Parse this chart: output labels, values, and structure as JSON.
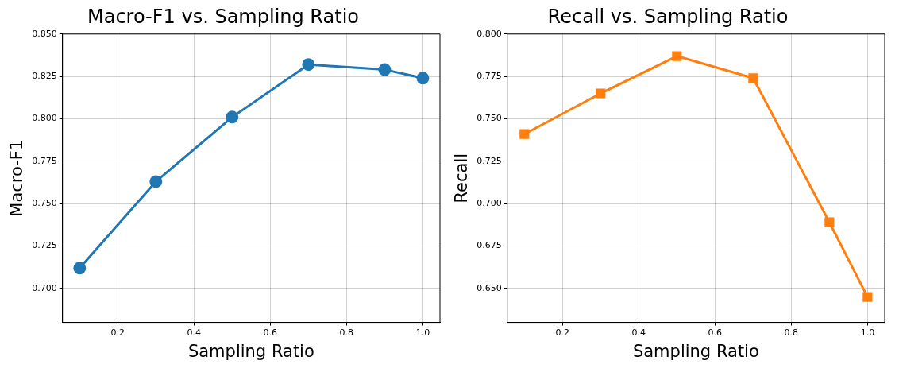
{
  "chart_data": [
    {
      "type": "line",
      "title": "Macro-F1 vs. Sampling Ratio",
      "xlabel": "Sampling Ratio",
      "ylabel": "Macro-F1",
      "x": [
        0.1,
        0.3,
        0.5,
        0.7,
        0.9,
        1.0
      ],
      "series": [
        {
          "color": "#1f77b4",
          "values": [
            0.712,
            0.763,
            0.801,
            0.832,
            0.829,
            0.824
          ]
        }
      ],
      "xlim": [
        0.055,
        1.045
      ],
      "ylim": [
        0.68,
        0.85
      ],
      "xticks": [
        0.2,
        0.4,
        0.6,
        0.8,
        {
          "value": 1,
          "label": "1.0"
        }
      ],
      "yticks": [
        {
          "value": 0.7,
          "label": "0.700"
        },
        {
          "value": 0.725,
          "label": "0.725"
        },
        {
          "value": 0.75,
          "label": "0.750"
        },
        {
          "value": 0.775,
          "label": "0.775"
        },
        {
          "value": 0.8,
          "label": "0.800"
        },
        {
          "value": 0.825,
          "label": "0.825"
        },
        {
          "value": 0.85,
          "label": "0.850"
        }
      ],
      "grid": true,
      "marker": "circle",
      "line_style": "solid"
    },
    {
      "type": "line",
      "title": "Recall vs. Sampling Ratio",
      "xlabel": "Sampling Ratio",
      "ylabel": "Recall",
      "x": [
        0.1,
        0.3,
        0.5,
        0.7,
        0.9,
        1.0
      ],
      "series": [
        {
          "color": "#ff7f0e",
          "values": [
            0.741,
            0.765,
            0.787,
            0.774,
            0.689,
            0.645
          ]
        }
      ],
      "xlim": [
        0.055,
        1.045
      ],
      "ylim": [
        0.63,
        0.8
      ],
      "xticks": [
        0.2,
        0.4,
        0.6,
        0.8,
        {
          "value": 1,
          "label": "1.0"
        }
      ],
      "yticks": [
        {
          "value": 0.65,
          "label": "0.650"
        },
        {
          "value": 0.675,
          "label": "0.675"
        },
        {
          "value": 0.7,
          "label": "0.700"
        },
        {
          "value": 0.725,
          "label": "0.725"
        },
        {
          "value": 0.75,
          "label": "0.750"
        },
        {
          "value": 0.775,
          "label": "0.775"
        },
        {
          "value": 0.8,
          "label": "0.800"
        }
      ],
      "grid": true,
      "marker": "square",
      "line_style": "solid"
    }
  ]
}
